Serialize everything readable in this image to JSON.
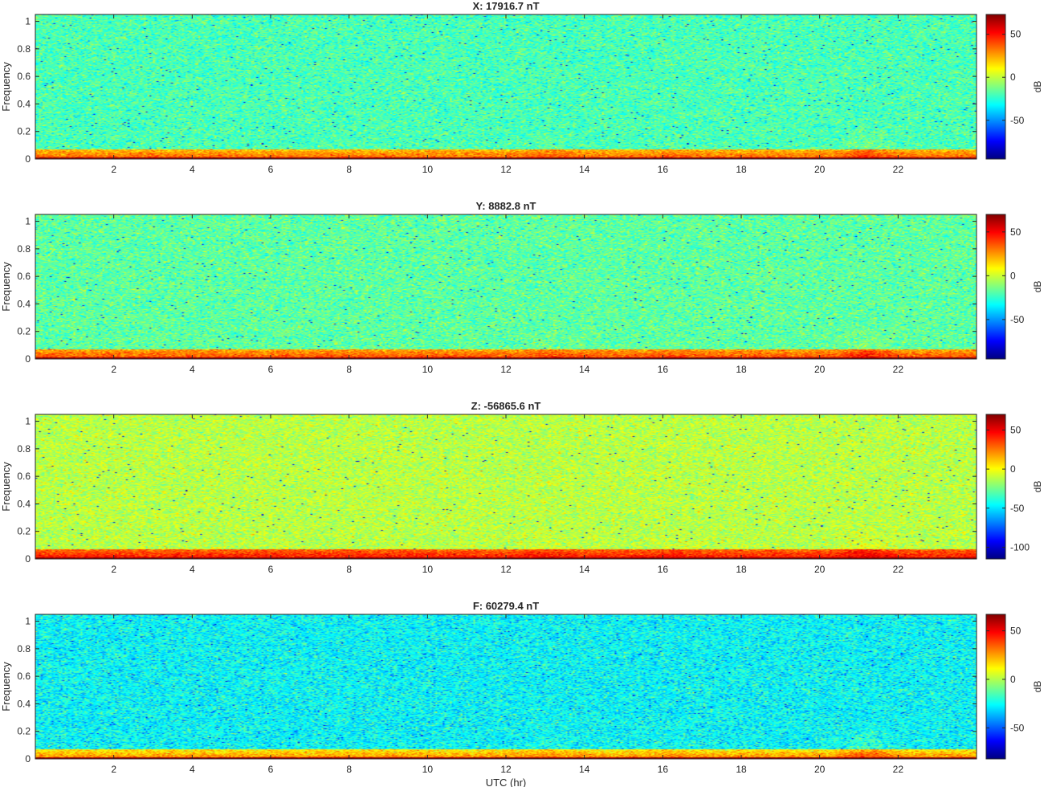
{
  "chart_data": [
    {
      "type": "heatmap",
      "title": "X: 17916.7 nT",
      "xlabel": "",
      "ylabel": "Frequency",
      "xlim": [
        0,
        24
      ],
      "ylim": [
        0,
        1.05
      ],
      "xticks": [
        2,
        4,
        6,
        8,
        10,
        12,
        14,
        16,
        18,
        20,
        22
      ],
      "yticks": [
        0,
        0.2,
        0.4,
        0.6,
        0.8,
        1
      ],
      "colormap": "jet",
      "colorbar": {
        "label": "dB",
        "clim": [
          -95,
          73
        ],
        "ticks": [
          -50,
          0,
          50
        ]
      },
      "levels": {
        "background_db": -20,
        "low_freq_band_db": 20,
        "dc_db": 68
      }
    },
    {
      "type": "heatmap",
      "title": "Y: 8882.8 nT",
      "xlabel": "",
      "ylabel": "Frequency",
      "xlim": [
        0,
        24
      ],
      "ylim": [
        0,
        1.05
      ],
      "xticks": [
        2,
        4,
        6,
        8,
        10,
        12,
        14,
        16,
        18,
        20,
        22
      ],
      "yticks": [
        0,
        0.2,
        0.4,
        0.6,
        0.8,
        1
      ],
      "colormap": "jet",
      "colorbar": {
        "label": "dB",
        "clim": [
          -95,
          70
        ],
        "ticks": [
          -50,
          0,
          50
        ]
      },
      "levels": {
        "background_db": -18,
        "low_freq_band_db": 22,
        "dc_db": 66
      }
    },
    {
      "type": "heatmap",
      "title": "Z: -56865.6 nT",
      "xlabel": "",
      "ylabel": "Frequency",
      "xlim": [
        0,
        24
      ],
      "ylim": [
        0,
        1.05
      ],
      "xticks": [
        2,
        4,
        6,
        8,
        10,
        12,
        14,
        16,
        18,
        20,
        22
      ],
      "yticks": [
        0,
        0.2,
        0.4,
        0.6,
        0.8,
        1
      ],
      "colormap": "jet",
      "colorbar": {
        "label": "dB",
        "clim": [
          -115,
          70
        ],
        "ticks": [
          -100,
          -50,
          0,
          50
        ]
      },
      "levels": {
        "background_db": -12,
        "low_freq_band_db": 28,
        "dc_db": 64
      }
    },
    {
      "type": "heatmap",
      "title": "F: 60279.4 nT",
      "xlabel": "UTC (hr)",
      "ylabel": "Frequency",
      "xlim": [
        0,
        24
      ],
      "ylim": [
        0,
        1.05
      ],
      "xticks": [
        2,
        4,
        6,
        8,
        10,
        12,
        14,
        16,
        18,
        20,
        22
      ],
      "yticks": [
        0,
        0.2,
        0.4,
        0.6,
        0.8,
        1
      ],
      "colormap": "jet",
      "colorbar": {
        "label": "dB",
        "clim": [
          -82,
          67
        ],
        "ticks": [
          -50,
          0,
          50
        ]
      },
      "levels": {
        "background_db": -26,
        "low_freq_band_db": 12,
        "dc_db": 62
      }
    }
  ]
}
